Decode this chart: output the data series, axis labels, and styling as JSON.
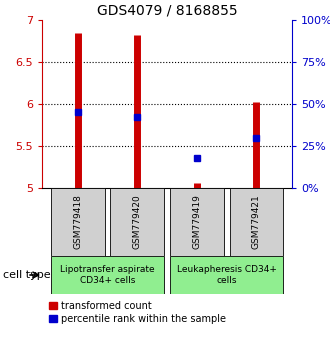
{
  "title": "GDS4079 / 8168855",
  "samples": [
    "GSM779418",
    "GSM779420",
    "GSM779419",
    "GSM779421"
  ],
  "red_values": [
    6.85,
    6.82,
    5.06,
    6.02
  ],
  "blue_values": [
    5.9,
    5.85,
    5.36,
    5.59
  ],
  "ylim": [
    5.0,
    7.0
  ],
  "yticks_left": [
    5.0,
    5.5,
    6.0,
    6.5,
    7.0
  ],
  "yticks_right": [
    0,
    25,
    50,
    75,
    100
  ],
  "red_color": "#cc0000",
  "blue_color": "#0000cc",
  "bar_linewidth": 5,
  "marker_size": 5,
  "group1_label": "Lipotransfer aspirate\nCD34+ cells",
  "group2_label": "Leukapheresis CD34+\ncells",
  "group_color": "#90EE90",
  "sample_box_color": "#d0d0d0",
  "title_fontsize": 10,
  "tick_fontsize": 8,
  "label_fontsize": 6.5,
  "group_fontsize": 6.5,
  "legend_fontsize": 7
}
